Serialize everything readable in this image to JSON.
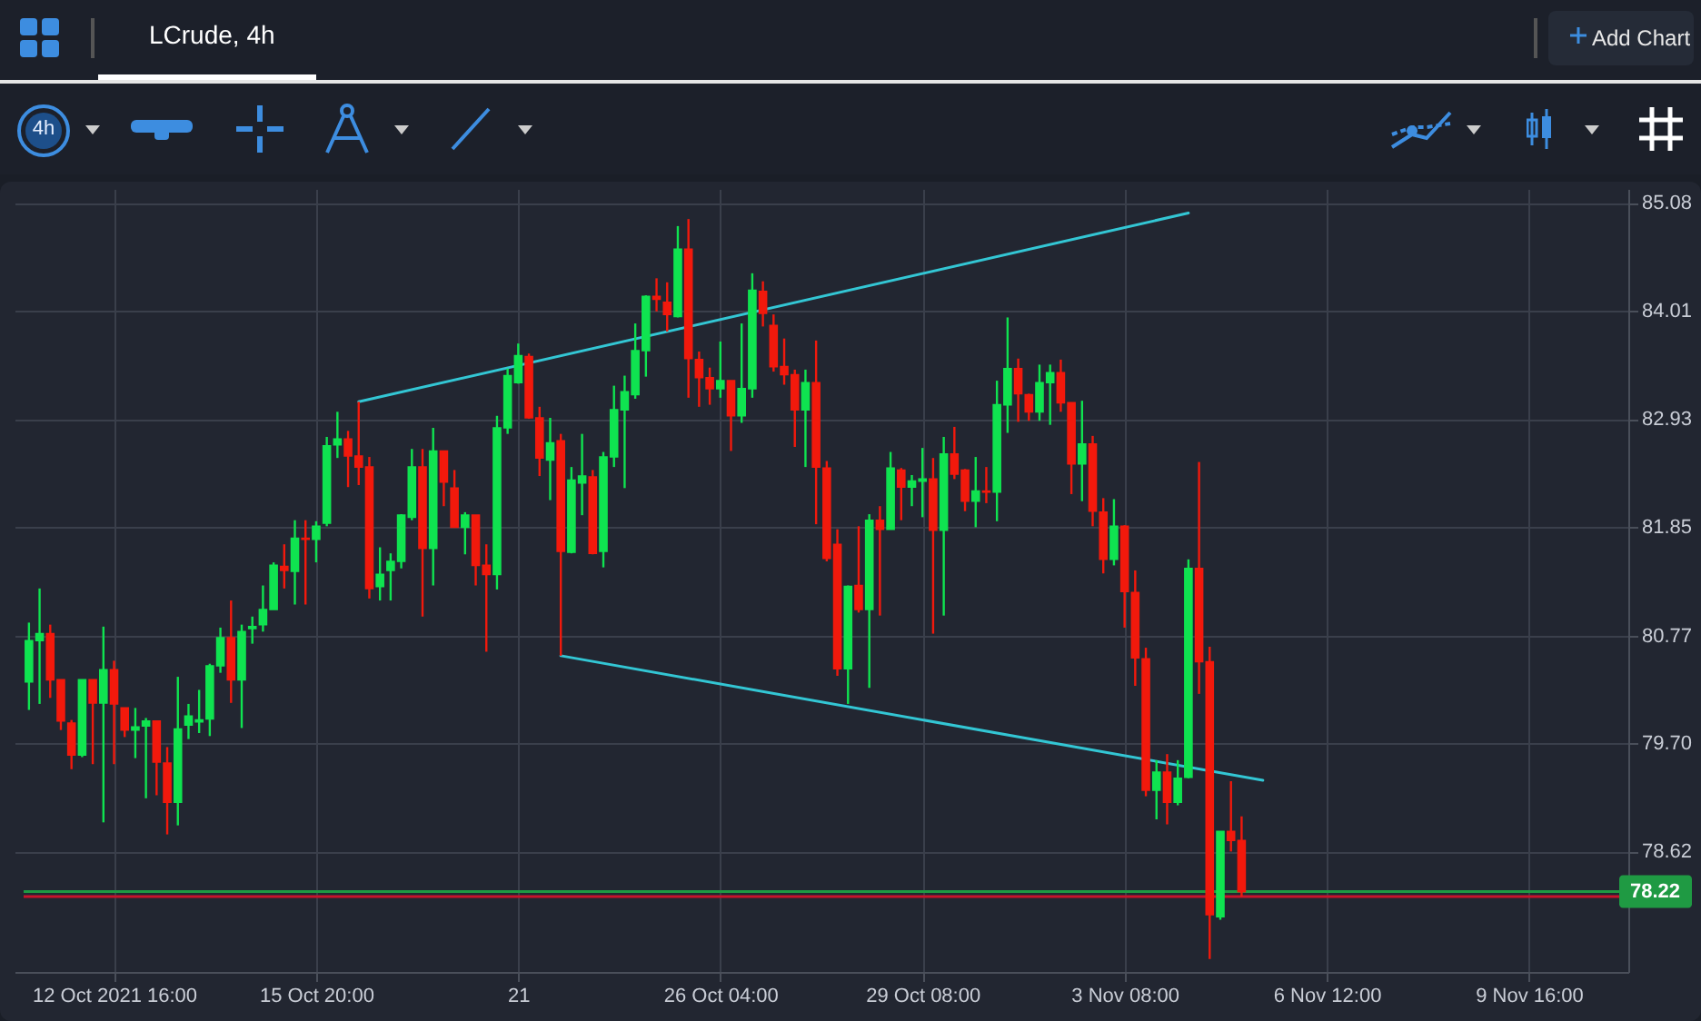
{
  "chart_data": {
    "type": "candlestick",
    "title": "LCrude, 4h",
    "annotations": [
      "4h",
      "Add Chart"
    ],
    "categories": [
      null,
      null,
      null,
      null,
      null,
      null,
      null,
      null,
      "12 Oct 2021 16:00",
      null,
      null,
      null,
      null,
      null,
      null,
      null,
      null,
      null,
      null,
      null,
      null,
      null,
      null,
      null,
      null,
      null,
      null,
      "15 Oct 20:00",
      null,
      null,
      null,
      null,
      null,
      null,
      null,
      null,
      null,
      null,
      null,
      null,
      null,
      null,
      null,
      null,
      null,
      null,
      "21",
      null,
      null,
      null,
      null,
      null,
      null,
      null,
      null,
      null,
      null,
      null,
      null,
      null,
      null,
      null,
      null,
      null,
      null,
      "26 Oct 04:00",
      null,
      null,
      null,
      null,
      null,
      null,
      null,
      null,
      null,
      null,
      null,
      null,
      null,
      null,
      null,
      null,
      null,
      null,
      "29 Oct 08:00",
      null,
      null,
      null,
      null,
      null,
      null,
      null,
      null,
      null,
      null,
      null,
      null,
      null,
      null,
      null,
      null,
      null,
      null,
      "3 Nov 08:00",
      null,
      null,
      null,
      null,
      null,
      null,
      null,
      null,
      null,
      null,
      null,
      null,
      null,
      null,
      null,
      null,
      null,
      null,
      "6 Nov 12:00",
      null,
      null,
      null,
      null,
      null,
      null,
      null,
      null,
      null,
      null,
      null,
      null,
      null,
      null,
      null,
      null,
      null,
      null,
      "9 Nov 16:00",
      null,
      null,
      null,
      null,
      null,
      null,
      null,
      null
    ],
    "ohlc": [
      [
        80.31,
        80.9,
        80.03,
        80.72
      ],
      [
        80.72,
        81.24,
        80.09,
        80.79
      ],
      [
        80.79,
        80.88,
        80.15,
        80.33
      ],
      [
        80.33,
        80.33,
        79.83,
        79.92
      ],
      [
        79.9,
        79.93,
        79.44,
        79.58
      ],
      [
        79.58,
        80.33,
        79.56,
        80.33
      ],
      [
        80.33,
        80.33,
        79.49,
        80.1
      ],
      [
        80.1,
        80.86,
        78.91,
        80.43
      ],
      [
        80.43,
        80.52,
        79.49,
        80.09
      ],
      [
        80.05,
        80.05,
        79.76,
        79.83
      ],
      [
        79.83,
        80.05,
        79.55,
        79.86
      ],
      [
        79.87,
        79.95,
        79.15,
        79.92
      ],
      [
        79.92,
        79.92,
        79.18,
        79.51
      ],
      [
        79.5,
        79.66,
        78.79,
        79.11
      ],
      [
        79.11,
        80.36,
        78.88,
        79.84
      ],
      [
        79.88,
        80.09,
        79.74,
        79.97
      ],
      [
        79.91,
        80.23,
        79.8,
        79.93
      ],
      [
        79.94,
        80.49,
        79.77,
        80.47
      ],
      [
        80.47,
        80.85,
        80.4,
        80.75
      ],
      [
        80.75,
        81.12,
        80.1,
        80.33
      ],
      [
        80.33,
        80.88,
        79.85,
        80.81
      ],
      [
        80.84,
        80.96,
        80.69,
        80.86
      ],
      [
        80.88,
        81.27,
        80.81,
        81.03
      ],
      [
        81.03,
        81.5,
        81.03,
        81.47
      ],
      [
        81.46,
        81.68,
        81.24,
        81.42
      ],
      [
        81.41,
        81.92,
        81.08,
        81.74
      ],
      [
        81.74,
        81.92,
        81.08,
        81.73
      ],
      [
        81.73,
        81.91,
        81.5,
        81.86
      ],
      [
        81.89,
        82.75,
        81.86,
        82.66
      ],
      [
        82.67,
        83.0,
        82.54,
        82.73
      ],
      [
        82.73,
        82.81,
        82.25,
        82.56
      ],
      [
        82.56,
        83.1,
        82.27,
        82.45
      ],
      [
        82.45,
        82.55,
        81.14,
        81.24
      ],
      [
        81.26,
        81.65,
        81.12,
        81.38
      ],
      [
        81.42,
        81.59,
        81.12,
        81.51
      ],
      [
        81.51,
        81.98,
        81.44,
        81.97
      ],
      [
        81.95,
        82.63,
        81.92,
        82.45
      ],
      [
        82.45,
        82.63,
        80.96,
        81.64
      ],
      [
        81.64,
        82.84,
        81.27,
        82.61
      ],
      [
        82.61,
        82.61,
        82.06,
        82.3
      ],
      [
        82.24,
        82.42,
        81.85,
        81.85
      ],
      [
        81.85,
        82.0,
        81.58,
        81.97
      ],
      [
        81.97,
        81.97,
        81.27,
        81.47
      ],
      [
        81.47,
        81.68,
        80.61,
        81.38
      ],
      [
        81.38,
        82.96,
        81.23,
        82.84
      ],
      [
        82.84,
        83.43,
        82.78,
        83.36
      ],
      [
        83.29,
        83.68,
        83.28,
        83.56
      ],
      [
        83.55,
        83.58,
        82.93,
        82.94
      ],
      [
        82.94,
        83.05,
        82.36,
        82.54
      ],
      [
        82.52,
        82.94,
        82.12,
        82.69
      ],
      [
        82.71,
        82.78,
        80.57,
        81.61
      ],
      [
        81.6,
        82.45,
        81.59,
        82.32
      ],
      [
        82.29,
        82.78,
        81.97,
        82.36
      ],
      [
        82.35,
        82.42,
        81.58,
        81.59
      ],
      [
        81.61,
        82.6,
        81.45,
        82.55
      ],
      [
        82.55,
        83.26,
        82.45,
        83.02
      ],
      [
        83.02,
        83.36,
        82.24,
        83.2
      ],
      [
        83.17,
        83.88,
        83.13,
        83.61
      ],
      [
        83.61,
        84.16,
        83.35,
        84.15
      ],
      [
        84.15,
        84.33,
        84.0,
        84.12
      ],
      [
        84.09,
        84.29,
        83.8,
        83.97
      ],
      [
        83.95,
        84.85,
        83.94,
        84.62
      ],
      [
        84.62,
        84.92,
        83.14,
        83.53
      ],
      [
        83.52,
        83.6,
        83.05,
        83.34
      ],
      [
        83.34,
        83.44,
        83.07,
        83.23
      ],
      [
        83.23,
        83.7,
        83.14,
        83.31
      ],
      [
        83.31,
        83.31,
        82.61,
        82.96
      ],
      [
        82.96,
        83.88,
        82.89,
        83.23
      ],
      [
        83.23,
        84.38,
        83.14,
        84.21
      ],
      [
        84.2,
        84.3,
        83.85,
        83.98
      ],
      [
        83.86,
        83.97,
        83.4,
        83.45
      ],
      [
        83.45,
        83.73,
        83.27,
        83.37
      ],
      [
        83.37,
        83.42,
        82.65,
        83.02
      ],
      [
        83.02,
        83.42,
        82.45,
        83.29
      ],
      [
        83.29,
        83.71,
        81.88,
        82.45
      ],
      [
        82.44,
        82.51,
        81.51,
        81.54
      ],
      [
        81.68,
        81.83,
        80.37,
        80.44
      ],
      [
        80.44,
        81.27,
        80.09,
        81.26
      ],
      [
        81.27,
        81.86,
        81.0,
        81.03
      ],
      [
        81.03,
        81.98,
        80.25,
        81.92
      ],
      [
        81.92,
        82.06,
        80.97,
        81.83
      ],
      [
        81.83,
        82.6,
        81.83,
        82.44
      ],
      [
        82.42,
        82.44,
        81.92,
        82.25
      ],
      [
        82.25,
        82.37,
        82.06,
        82.31
      ],
      [
        82.31,
        82.64,
        81.95,
        82.33
      ],
      [
        82.33,
        82.54,
        80.79,
        81.82
      ],
      [
        81.82,
        82.75,
        80.97,
        82.58
      ],
      [
        82.58,
        82.85,
        82.33,
        82.38
      ],
      [
        82.42,
        82.43,
        82.01,
        82.11
      ],
      [
        82.11,
        82.55,
        81.85,
        82.21
      ],
      [
        82.21,
        82.45,
        82.09,
        82.2
      ],
      [
        82.2,
        83.31,
        81.91,
        83.07
      ],
      [
        83.07,
        83.94,
        82.79,
        83.43
      ],
      [
        83.43,
        83.53,
        82.9,
        83.18
      ],
      [
        83.17,
        83.18,
        82.91,
        83.0
      ],
      [
        83.0,
        83.47,
        82.91,
        83.29
      ],
      [
        83.29,
        83.47,
        82.87,
        83.39
      ],
      [
        83.39,
        83.52,
        83.0,
        83.09
      ],
      [
        83.09,
        83.09,
        82.18,
        82.48
      ],
      [
        82.48,
        83.11,
        82.11,
        82.68
      ],
      [
        82.68,
        82.76,
        81.86,
        82.01
      ],
      [
        82.0,
        82.14,
        81.39,
        81.53
      ],
      [
        81.53,
        82.13,
        81.47,
        81.86
      ],
      [
        81.86,
        81.87,
        80.85,
        81.21
      ],
      [
        81.2,
        81.42,
        80.27,
        80.55
      ],
      [
        80.54,
        80.65,
        79.17,
        79.23
      ],
      [
        79.23,
        79.53,
        78.94,
        79.41
      ],
      [
        79.41,
        79.59,
        78.89,
        79.11
      ],
      [
        79.11,
        79.53,
        79.08,
        79.35
      ],
      [
        79.36,
        81.53,
        79.35,
        81.44
      ],
      [
        81.44,
        82.5,
        80.19,
        80.51
      ],
      [
        80.51,
        80.66,
        77.55,
        77.99
      ],
      [
        77.97,
        78.82,
        77.94,
        78.82
      ],
      [
        78.82,
        79.32,
        78.62,
        78.73
      ],
      [
        78.73,
        78.97,
        78.17,
        78.22
      ],
      null,
      null,
      null,
      null,
      null,
      null,
      null,
      null,
      null,
      null,
      null,
      null,
      null,
      null,
      null,
      null,
      null,
      null,
      null,
      null,
      null,
      null,
      null,
      null,
      null,
      null,
      null,
      null,
      null,
      null,
      null,
      null,
      null,
      null,
      null
    ],
    "colors": [
      "#0fe350",
      "#0fe350",
      "#f2190c",
      "#f2190c",
      "#f2190c",
      "#0fe350",
      "#f2190c",
      "#0fe350",
      "#f2190c",
      "#f2190c",
      "#0fe350",
      "#0fe350",
      "#f2190c",
      "#f2190c",
      "#0fe350",
      "#0fe350",
      "#0fe350",
      "#0fe350",
      "#0fe350",
      "#f2190c",
      "#0fe350",
      "#0fe350",
      "#0fe350",
      "#0fe350",
      "#f2190c",
      "#0fe350",
      "#f2190c",
      "#0fe350",
      "#0fe350",
      "#0fe350",
      "#f2190c",
      "#f2190c",
      "#f2190c",
      "#0fe350",
      "#0fe350",
      "#0fe350",
      "#0fe350",
      "#f2190c",
      "#0fe350",
      "#f2190c",
      "#f2190c",
      "#0fe350",
      "#f2190c",
      "#f2190c",
      "#0fe350",
      "#0fe350",
      "#0fe350",
      "#f2190c",
      "#f2190c",
      "#0fe350",
      "#f2190c",
      "#0fe350",
      "#0fe350",
      "#f2190c",
      "#0fe350",
      "#0fe350",
      "#0fe350",
      "#0fe350",
      "#0fe350",
      "#f2190c",
      "#f2190c",
      "#0fe350",
      "#f2190c",
      "#f2190c",
      "#f2190c",
      "#0fe350",
      "#f2190c",
      "#0fe350",
      "#0fe350",
      "#f2190c",
      "#f2190c",
      "#f2190c",
      "#f2190c",
      "#0fe350",
      "#f2190c",
      "#f2190c",
      "#f2190c",
      "#0fe350",
      "#f2190c",
      "#0fe350",
      "#f2190c",
      "#0fe350",
      "#f2190c",
      "#0fe350",
      "#0fe350",
      "#f2190c",
      "#0fe350",
      "#f2190c",
      "#f2190c",
      "#0fe350",
      "#f2190c",
      "#0fe350",
      "#0fe350",
      "#f2190c",
      "#f2190c",
      "#0fe350",
      "#0fe350",
      "#f2190c",
      "#f2190c",
      "#0fe350",
      "#f2190c",
      "#f2190c",
      "#0fe350",
      "#f2190c",
      "#f2190c",
      "#f2190c",
      "#0fe350",
      "#f2190c",
      "#0fe350",
      "#0fe350",
      "#f2190c",
      "#f2190c",
      "#0fe350",
      "#f2190c",
      "#f2190c",
      null,
      null,
      null,
      null,
      null,
      null,
      null,
      null,
      null,
      null,
      null,
      null,
      null,
      null,
      null,
      null,
      null,
      null,
      null,
      null,
      null,
      null,
      null,
      null,
      null,
      null,
      null,
      null,
      null,
      null,
      null,
      null,
      null,
      null,
      null
    ],
    "series": [
      {
        "type": "line",
        "color": "#33c6d4",
        "values": [
          null,
          null,
          null,
          null,
          null,
          null,
          null,
          null,
          null,
          null,
          null,
          null,
          null,
          null,
          null,
          null,
          null,
          null,
          null,
          null,
          null,
          null,
          null,
          null,
          null,
          null,
          null,
          null,
          null,
          null,
          null,
          83.1,
          null,
          null,
          null,
          null,
          null,
          null,
          null,
          null,
          null,
          null,
          null,
          null,
          null,
          null,
          null,
          null,
          null,
          null,
          null,
          null,
          null,
          null,
          null,
          null,
          null,
          null,
          null,
          null,
          null,
          null,
          null,
          null,
          null,
          null,
          null,
          null,
          null,
          null,
          null,
          null,
          null,
          null,
          null,
          null,
          null,
          null,
          null,
          null,
          null,
          null,
          null,
          null,
          null,
          null,
          null,
          null,
          null,
          null,
          null,
          null,
          null,
          null,
          null,
          null,
          null,
          null,
          null,
          null,
          null,
          null,
          null,
          null,
          null,
          null,
          null,
          null,
          null,
          84.98,
          null,
          null,
          null,
          null,
          null,
          null,
          null,
          null,
          null,
          null,
          null,
          null,
          null,
          null,
          null,
          null,
          null,
          null,
          null,
          null,
          null,
          null,
          null,
          null,
          null,
          null,
          null,
          null,
          null,
          null,
          null,
          null,
          null,
          null,
          null,
          null,
          null,
          null,
          null,
          null
        ]
      },
      {
        "type": "line",
        "color": "#33c6d4",
        "values": [
          null,
          null,
          null,
          null,
          null,
          null,
          null,
          null,
          null,
          null,
          null,
          null,
          null,
          null,
          null,
          null,
          null,
          null,
          null,
          null,
          null,
          null,
          null,
          null,
          null,
          null,
          null,
          null,
          null,
          null,
          null,
          null,
          null,
          null,
          null,
          null,
          null,
          null,
          null,
          null,
          null,
          null,
          null,
          null,
          null,
          null,
          null,
          null,
          null,
          null,
          80.57,
          null,
          null,
          null,
          null,
          null,
          null,
          null,
          null,
          null,
          null,
          null,
          null,
          null,
          null,
          null,
          null,
          null,
          null,
          null,
          null,
          null,
          null,
          null,
          null,
          null,
          null,
          null,
          null,
          null,
          null,
          null,
          null,
          null,
          null,
          null,
          null,
          null,
          null,
          null,
          null,
          null,
          null,
          null,
          null,
          null,
          null,
          null,
          null,
          null,
          null,
          null,
          null,
          null,
          null,
          null,
          null,
          null,
          null,
          null,
          null,
          null,
          null,
          null,
          null,
          null,
          79.33,
          null,
          null,
          null,
          null,
          null,
          null,
          null,
          null,
          null,
          null,
          null,
          null,
          null,
          null,
          null,
          null,
          null,
          null,
          null,
          null,
          null,
          null,
          null,
          null,
          null,
          null,
          null,
          null,
          null,
          null,
          null,
          null,
          null
        ]
      }
    ],
    "ref_lines": [
      {
        "axis": "y",
        "value": 78.22,
        "label": "78.22",
        "color": "#1f9a43"
      },
      {
        "axis": "y",
        "value": 78.17,
        "color": "#c8142c"
      }
    ],
    "ylim": [
      77.42,
      85.22
    ],
    "yticks": [
      78.62,
      {
        "value": 79.7,
        "label": "79.70"
      },
      80.77,
      81.85,
      82.93,
      84.01,
      85.08
    ],
    "grid": true
  }
}
